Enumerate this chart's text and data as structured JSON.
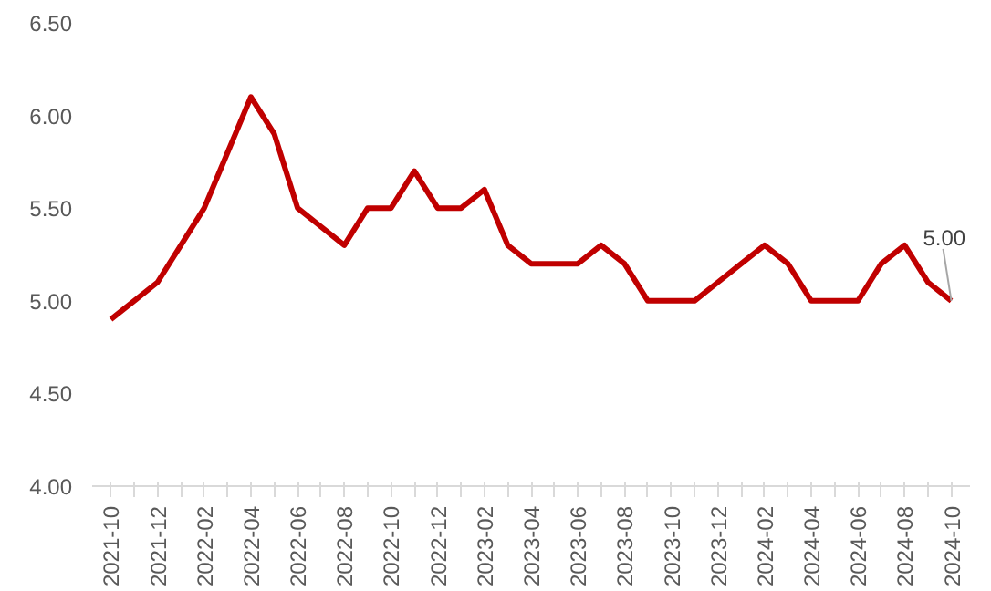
{
  "chart_data": {
    "type": "line",
    "categories": [
      "2021-10",
      null,
      "2021-12",
      null,
      "2022-02",
      null,
      "2022-04",
      null,
      "2022-06",
      null,
      "2022-08",
      null,
      "2022-10",
      null,
      "2022-12",
      null,
      "2023-02",
      null,
      "2023-04",
      null,
      "2023-06",
      null,
      "2023-08",
      null,
      "2023-10",
      null,
      "2023-12",
      null,
      "2024-02",
      null,
      "2024-04",
      null,
      "2024-06",
      null,
      "2024-08",
      null,
      "2024-10"
    ],
    "series": [
      {
        "color": "#c00000",
        "values": [
          4.9,
          5.0,
          5.1,
          5.3,
          5.5,
          5.8,
          6.1,
          5.9,
          5.5,
          5.4,
          5.3,
          5.5,
          5.5,
          5.7,
          5.5,
          5.5,
          5.6,
          5.3,
          5.2,
          5.2,
          5.2,
          5.3,
          5.2,
          5.0,
          5.0,
          5.0,
          5.1,
          5.2,
          5.3,
          5.2,
          5.0,
          5.0,
          5.0,
          5.2,
          5.3,
          5.1,
          5.0
        ]
      }
    ],
    "ylim": [
      4.0,
      6.5
    ],
    "yticks": [
      {
        "value": 4.0,
        "label": "4.00"
      },
      {
        "value": 4.5,
        "label": "4.50"
      },
      {
        "value": 5.0,
        "label": "5.00"
      },
      {
        "value": 5.5,
        "label": "5.50"
      },
      {
        "value": 6.0,
        "label": "6.00"
      },
      {
        "value": 6.5,
        "label": "6.50"
      }
    ],
    "annotations": [
      {
        "text": "5.00",
        "x": "2024-10",
        "y": 5.0
      }
    ],
    "grid": false,
    "marker": "none",
    "line_style": "solid"
  }
}
